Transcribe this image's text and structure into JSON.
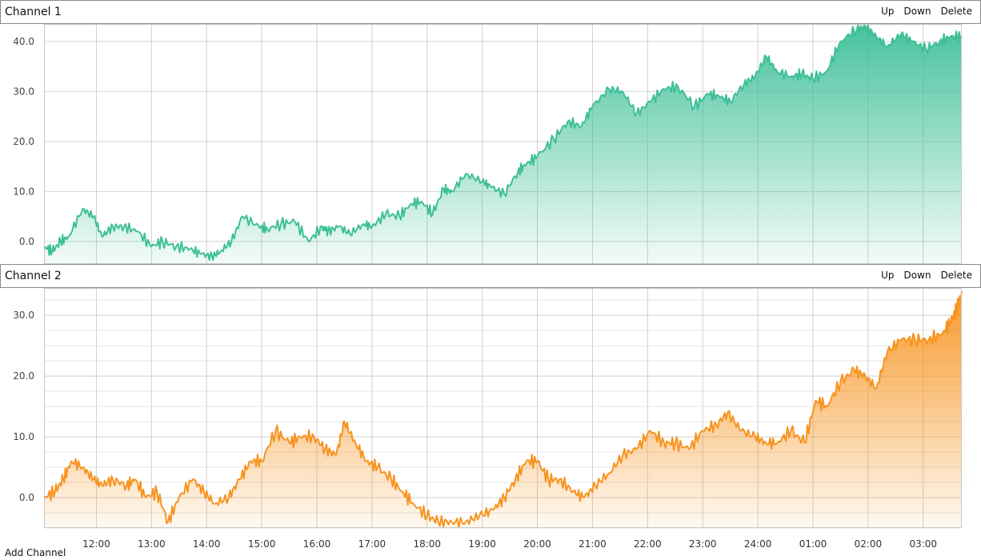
{
  "channels": [
    {
      "title": "Channel 1",
      "actions": {
        "up": "Up",
        "down": "Down",
        "delete": "Delete"
      }
    },
    {
      "title": "Channel 2",
      "actions": {
        "up": "Up",
        "down": "Down",
        "delete": "Delete"
      }
    }
  ],
  "footer": {
    "add_channel_label": "Add Channel"
  },
  "colors": {
    "channel1": "#3dbf97",
    "channel2": "#f7931e"
  },
  "chart_data": [
    {
      "type": "area",
      "x_ticks": [
        "12:00",
        "13:00",
        "14:00",
        "15:00",
        "16:00",
        "17:00",
        "18:00",
        "19:00",
        "20:00",
        "21:00",
        "22:00",
        "23:00",
        "24:00",
        "01:00",
        "02:00",
        "03:00"
      ],
      "xlim_hours": [
        11.05,
        27.7
      ],
      "ylim": [
        -4.5,
        43.5
      ],
      "y_ticks": [
        "0.0",
        "10.0",
        "20.0",
        "30.0",
        "40.0"
      ],
      "y_tick_values": [
        0,
        10,
        20,
        30,
        40
      ],
      "series": [
        {
          "x_hours": [
            11.05,
            11.2,
            11.35,
            11.5,
            11.75,
            11.95,
            12.1,
            12.3,
            12.5,
            12.75,
            13.0,
            13.2,
            13.45,
            13.7,
            13.9,
            14.1,
            14.25,
            14.45,
            14.65,
            14.95,
            15.1,
            15.35,
            15.6,
            15.85,
            16.1,
            16.2,
            16.4,
            16.6,
            16.85,
            17.0,
            17.25,
            17.5,
            17.7,
            17.9,
            18.1,
            18.3,
            18.45,
            18.7,
            19.0,
            19.15,
            19.4,
            19.65,
            19.8,
            20.0,
            20.3,
            20.55,
            20.8,
            21.0,
            21.3,
            21.55,
            21.8,
            22.05,
            22.3,
            22.55,
            22.85,
            23.1,
            23.3,
            23.5,
            23.75,
            23.95,
            24.15,
            24.35,
            24.6,
            24.8,
            25.0,
            25.25,
            25.5,
            25.8,
            25.95,
            26.15,
            26.35,
            26.6,
            26.8,
            27.05,
            27.3,
            27.5,
            27.7
          ],
          "values": [
            -1,
            -2,
            0,
            1,
            6.5,
            5,
            1,
            3,
            3,
            2,
            -1,
            0,
            -1,
            -1.5,
            -2.5,
            -3,
            -2,
            0,
            5,
            3,
            2.5,
            3.5,
            4,
            0,
            3,
            2,
            3,
            1.5,
            3.5,
            3,
            5.5,
            5,
            7.5,
            8,
            5.5,
            10.5,
            10,
            13.5,
            12,
            11,
            9.5,
            14,
            15.5,
            17,
            20.5,
            24,
            23,
            27,
            30.5,
            30,
            25.5,
            28,
            30.5,
            31,
            27,
            29.5,
            29,
            28,
            31.5,
            33,
            37,
            34,
            33,
            33.5,
            32.5,
            34,
            40,
            42.5,
            43,
            41,
            39,
            41.5,
            40,
            38.5,
            40,
            41,
            41
          ]
        }
      ]
    },
    {
      "type": "area",
      "x_ticks": [
        "12:00",
        "13:00",
        "14:00",
        "15:00",
        "16:00",
        "17:00",
        "18:00",
        "19:00",
        "20:00",
        "21:00",
        "22:00",
        "23:00",
        "24:00",
        "01:00",
        "02:00",
        "03:00"
      ],
      "xlim_hours": [
        11.05,
        27.7
      ],
      "ylim": [
        -5,
        34.5
      ],
      "y_ticks": [
        "0.0",
        "10.0",
        "20.0",
        "30.0"
      ],
      "y_tick_values": [
        0,
        10,
        20,
        30
      ],
      "series": [
        {
          "x_hours": [
            11.05,
            11.25,
            11.4,
            11.55,
            11.75,
            11.95,
            12.1,
            12.3,
            12.55,
            12.7,
            12.9,
            13.1,
            13.3,
            13.5,
            13.75,
            13.95,
            14.15,
            14.4,
            14.6,
            14.8,
            15.0,
            15.25,
            15.5,
            15.7,
            15.95,
            16.15,
            16.35,
            16.5,
            16.7,
            16.9,
            17.1,
            17.35,
            17.55,
            17.75,
            18.0,
            18.2,
            18.45,
            18.7,
            18.95,
            19.2,
            19.4,
            19.6,
            19.8,
            20.0,
            20.2,
            20.4,
            20.65,
            20.85,
            21.05,
            21.3,
            21.55,
            21.8,
            22.05,
            22.3,
            22.5,
            22.75,
            23.0,
            23.25,
            23.45,
            23.7,
            23.95,
            24.15,
            24.35,
            24.6,
            24.85,
            25.05,
            25.25,
            25.5,
            25.75,
            25.95,
            26.15,
            26.35,
            26.6,
            26.85,
            27.1,
            27.35,
            27.5,
            27.6,
            27.7
          ],
          "values": [
            0,
            1,
            3,
            6,
            5,
            3,
            2,
            3,
            2,
            3,
            0,
            1,
            -4,
            0,
            3,
            1,
            -1,
            0,
            3,
            6,
            6,
            11,
            9,
            10,
            10,
            8,
            7,
            12.5,
            9,
            6,
            5,
            3,
            1,
            -1,
            -3,
            -4,
            -4,
            -4,
            -3,
            -2,
            0,
            3,
            6,
            6,
            3,
            3,
            1,
            0,
            2,
            4,
            7,
            8,
            11,
            9,
            9,
            8,
            11,
            12,
            14,
            11,
            10,
            9,
            9,
            11,
            9,
            16,
            15,
            19,
            21,
            20,
            18,
            24,
            26,
            26,
            26,
            27,
            29,
            31,
            34
          ]
        }
      ]
    }
  ]
}
